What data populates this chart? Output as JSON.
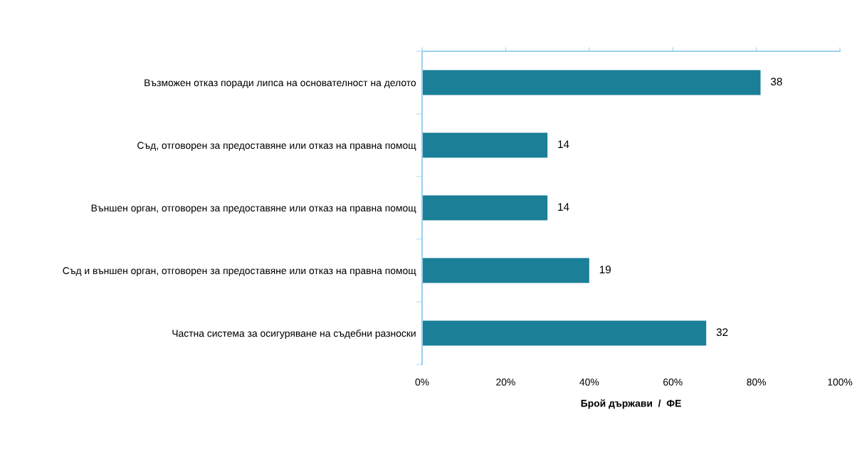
{
  "chart_data": {
    "type": "bar",
    "orientation": "horizontal",
    "categories": [
      "Възможен отказ поради липса на основателност на делото",
      "Съд, отговорен за предоставяне или отказ на правна помощ",
      "Външен орган, отговорен за предоставяне или отказ на правна помощ",
      "Съд и външен орган, отговорен за предоставяне или отказ на правна помощ",
      "Частна система за осигуряване на съдебни разноски"
    ],
    "values": [
      81,
      30,
      30,
      40,
      68
    ],
    "annotations": [
      {
        "text": "38",
        "x": 81,
        "y": "Възможен отказ поради липса на основателност на делото"
      },
      {
        "text": "14",
        "x": 30,
        "y": "Съд, отговорен за предоставяне или отказ на правна помощ"
      },
      {
        "text": "14",
        "x": 30,
        "y": "Външен орган, отговорен за предоставяне или отказ на правна помощ"
      },
      {
        "text": "19",
        "x": 40,
        "y": "Съд и външен орган, отговорен за предоставяне или отказ на правна помощ"
      },
      {
        "text": "32",
        "x": 68,
        "y": "Частна система за осигуряване на съдебни разноски"
      }
    ],
    "color": "#1a7f97",
    "xlabel": "Брой държави  /  ФЕ",
    "xlim": [
      0,
      100
    ],
    "xticks": [
      {
        "value": 0,
        "label": "0%"
      },
      {
        "value": 20,
        "label": "20%"
      },
      {
        "value": 40,
        "label": "40%"
      },
      {
        "value": 60,
        "label": "60%"
      },
      {
        "value": 80,
        "label": "80%"
      },
      {
        "value": 100,
        "label": "100%"
      }
    ],
    "grid": false,
    "legend": false
  }
}
